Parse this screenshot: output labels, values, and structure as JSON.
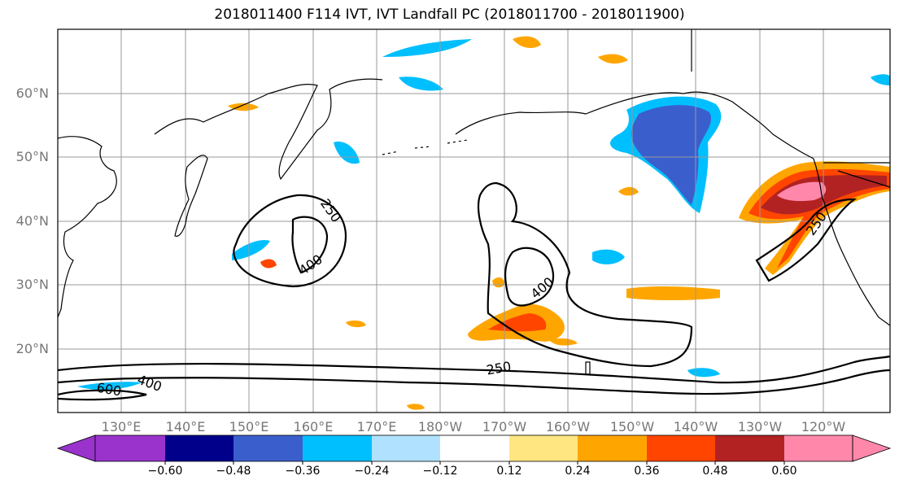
{
  "title": "2018011400 F114 IVT, IVT Landfall PC (2018011700 - 2018011900)",
  "lat_labels": [
    "60°N",
    "50°N",
    "40°N",
    "30°N",
    "20°N"
  ],
  "lon_labels": [
    "130°E",
    "140°E",
    "150°E",
    "160°E",
    "170°E",
    "180°W",
    "170°W",
    "160°W",
    "150°W",
    "140°W",
    "130°W",
    "120°W"
  ],
  "contour_labels": [
    "250",
    "400",
    "400",
    "250",
    "250",
    "400",
    "600"
  ],
  "colorbar": {
    "ticks": [
      "−0.60",
      "−0.48",
      "−0.36",
      "−0.24",
      "−0.12",
      "0.12",
      "0.24",
      "0.36",
      "0.48",
      "0.60"
    ],
    "colors": [
      "#9933cc",
      "#00008b",
      "#3a5fcd",
      "#00bfff",
      "#b0e2ff",
      "#ffffff",
      "#ffe680",
      "#ffa500",
      "#ff4500",
      "#b22222",
      "#ff88aa"
    ]
  }
}
